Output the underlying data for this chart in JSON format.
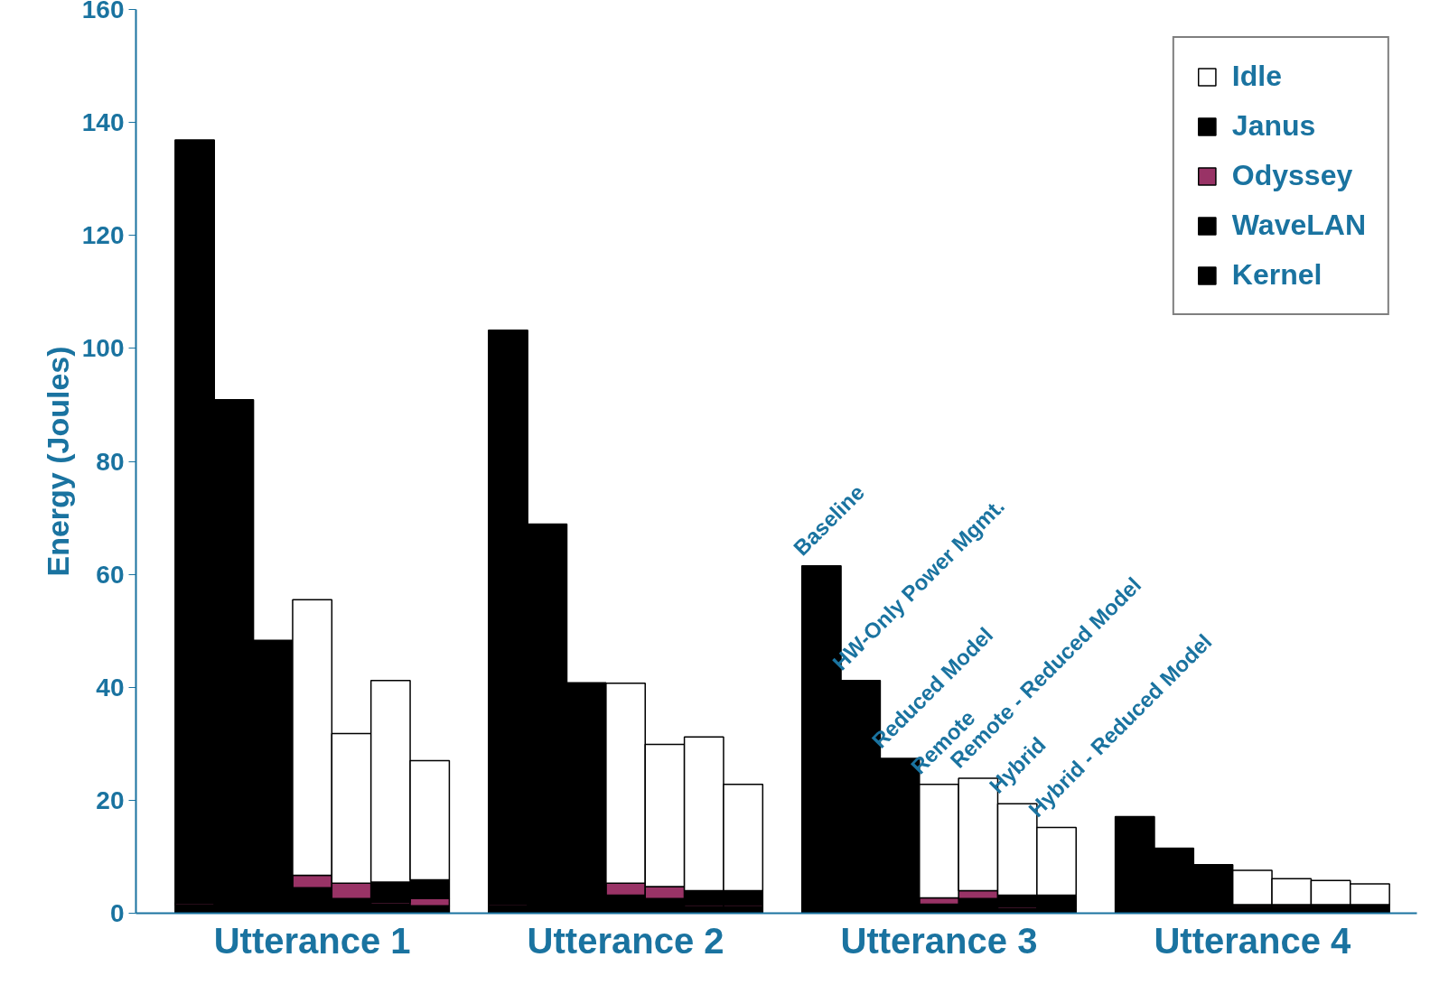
{
  "chart_data": {
    "type": "bar",
    "stacked": true,
    "ylabel": "Energy (Joules)",
    "ylim": [
      0,
      160
    ],
    "yticks": [
      0,
      20,
      40,
      60,
      80,
      100,
      120,
      140,
      160
    ],
    "grid": false,
    "legend": "top right",
    "categories": [
      null,
      null,
      null,
      "Utterance 1",
      null,
      null,
      null,
      null,
      null,
      null,
      "Utterance 2",
      null,
      null,
      null,
      null,
      null,
      null,
      "Utterance 3",
      null,
      null,
      null,
      null,
      null,
      null,
      "Utterance 4",
      null,
      null,
      null
    ],
    "annotations": [
      "Baseline",
      "HW-Only Power Mgmt.",
      "Reduced Model",
      "Remote",
      "Remote - Reduced Model",
      "Hybrid",
      "Hybrid - Reduced Model"
    ],
    "series": [
      {
        "name": "Kernel",
        "color": "#000000",
        "values": [
          1.5,
          1.5,
          1.5,
          1.5,
          1.5,
          1.6,
          1.3,
          1.3,
          1.3,
          1.3,
          1.5,
          1.5,
          1.2,
          1.2,
          1.3,
          1.3,
          1.3,
          1.0,
          1.5,
          0.8,
          1.0,
          1.0,
          1.0,
          1.0,
          0.9,
          0.9,
          1.5,
          1.5
        ]
      },
      {
        "name": "WaveLAN",
        "color": "#000000",
        "values": [
          0,
          0,
          0,
          3,
          1.1,
          0,
          0,
          0,
          0,
          0,
          1.7,
          1.1,
          0,
          0,
          0,
          0,
          0,
          0.6,
          1.1,
          0,
          0,
          0,
          0,
          0,
          0,
          0,
          0,
          0
        ]
      },
      {
        "name": "Odyssey",
        "color": "#993366",
        "values": [
          0.3,
          0,
          0,
          2.2,
          2.7,
          0.3,
          1.3,
          0.3,
          0,
          0,
          2.1,
          2.1,
          0.3,
          0.3,
          0,
          0,
          0,
          1.1,
          1.4,
          0.3,
          0,
          0,
          0,
          0,
          0.3,
          0.3,
          0,
          0
        ]
      },
      {
        "name": "Janus",
        "color": "#000000",
        "values": [
          135.1,
          89.4,
          46.8,
          0,
          0,
          3.6,
          3.3,
          101.6,
          67.6,
          39.5,
          0,
          0,
          2.5,
          2.5,
          60.2,
          39.9,
          26.1,
          0,
          0,
          2.1,
          2.2,
          16.1,
          10.5,
          7.6,
          0.3,
          0.3,
          0,
          0
        ]
      },
      {
        "name": "Idle",
        "color": "#ffffff",
        "values": [
          0,
          0,
          0,
          48.8,
          26.5,
          35.7,
          21.1,
          0,
          0,
          0,
          35.4,
          25.2,
          27.2,
          18.8,
          0,
          0,
          0,
          20.1,
          19.9,
          16.2,
          12.0,
          0,
          0,
          0,
          6.1,
          4.6,
          4.3,
          3.7
        ]
      }
    ]
  }
}
